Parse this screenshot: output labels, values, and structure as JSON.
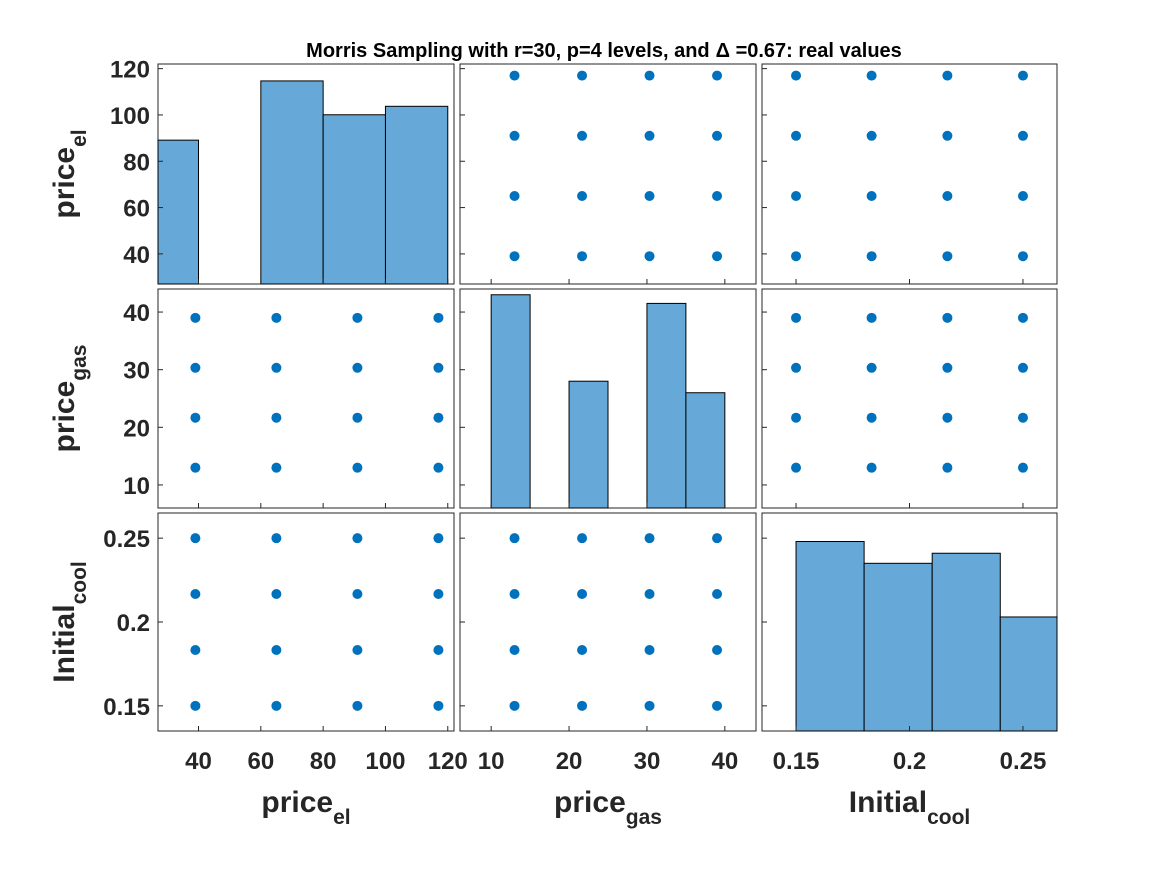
{
  "chart_data": {
    "type": "scatter-matrix",
    "title": "Morris Sampling with r=30, p=4 levels, and",
    "title_delta": "Δ",
    "title_suffix": " =0.67: real values",
    "colors": {
      "hist_fill": "#66a9d8",
      "point": "#0072bd",
      "text": "#262626"
    },
    "variables": [
      {
        "name": "price",
        "subscript": "el",
        "range": [
          27,
          122
        ],
        "ticks": [
          40,
          60,
          80,
          100,
          120
        ],
        "tick_labels": [
          "40",
          "60",
          "80",
          "100",
          "120"
        ],
        "levels": [
          39,
          65,
          91,
          117
        ],
        "hist_range": [
          0,
          130
        ],
        "histogram": [
          {
            "lo": 27,
            "hi": 40,
            "count": 85
          },
          {
            "lo": 40,
            "hi": 60,
            "count": 0
          },
          {
            "lo": 60,
            "hi": 80,
            "count": 120
          },
          {
            "lo": 80,
            "hi": 100,
            "count": 100
          },
          {
            "lo": 100,
            "hi": 120,
            "count": 105
          }
        ]
      },
      {
        "name": "price",
        "subscript": "gas",
        "range": [
          6,
          44
        ],
        "ticks": [
          10,
          20,
          30,
          40
        ],
        "tick_labels": [
          "10",
          "20",
          "30",
          "40"
        ],
        "levels": [
          13,
          21.67,
          30.33,
          39
        ],
        "hist_range": [
          6,
          44
        ],
        "histogram": [
          {
            "lo": 10,
            "hi": 15,
            "count": 43
          },
          {
            "lo": 15,
            "hi": 20,
            "count": 0
          },
          {
            "lo": 20,
            "hi": 25,
            "count": 28
          },
          {
            "lo": 25,
            "hi": 30,
            "count": 0
          },
          {
            "lo": 30,
            "hi": 35,
            "count": 41.5
          },
          {
            "lo": 35,
            "hi": 40,
            "count": 26
          }
        ]
      },
      {
        "name": "Initial",
        "subscript": "cool",
        "range": [
          0.135,
          0.265
        ],
        "ticks": [
          0.15,
          0.2,
          0.25
        ],
        "tick_labels": [
          "0.15",
          "0.2",
          "0.25"
        ],
        "levels": [
          0.15,
          0.1833,
          0.2167,
          0.25
        ],
        "hist_range": [
          0.135,
          0.265
        ],
        "histogram": [
          {
            "lo": 0.15,
            "hi": 0.18,
            "count": 0.248
          },
          {
            "lo": 0.18,
            "hi": 0.21,
            "count": 0.235
          },
          {
            "lo": 0.21,
            "hi": 0.24,
            "count": 0.241
          },
          {
            "lo": 0.24,
            "hi": 0.27,
            "count": 0.203
          }
        ]
      }
    ]
  }
}
